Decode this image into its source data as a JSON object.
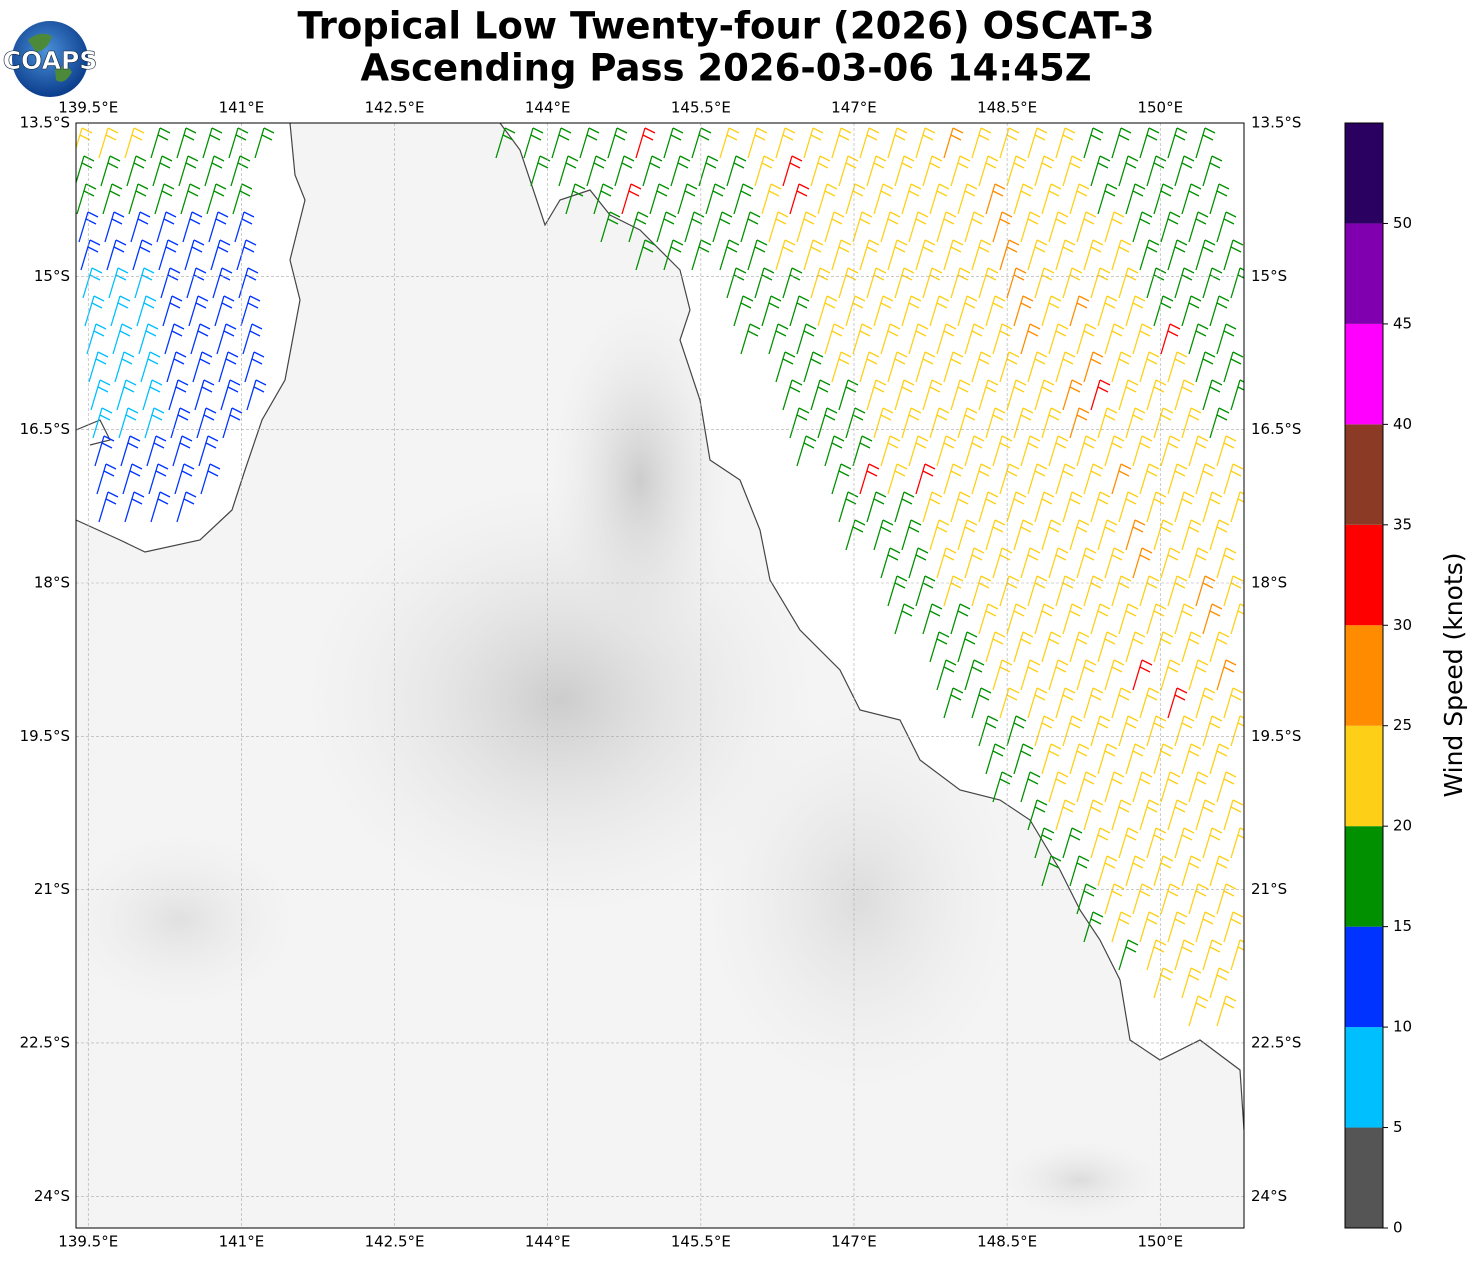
{
  "logo": "COAPS",
  "title": [
    "Tropical Low Twenty-four (2026) OSCAT-3",
    "Ascending Pass 2026-03-06 14:45Z"
  ],
  "map": {
    "xlim": [
      139.38,
      150.82
    ],
    "ylim": [
      -24.31,
      -13.5
    ],
    "xticks": [
      {
        "value": 139.5,
        "label": "139.5°E"
      },
      {
        "value": 141,
        "label": "141°E"
      },
      {
        "value": 142.5,
        "label": "142.5°E"
      },
      {
        "value": 144,
        "label": "144°E"
      },
      {
        "value": 145.5,
        "label": "145.5°E"
      },
      {
        "value": 147,
        "label": "147°E"
      },
      {
        "value": 148.5,
        "label": "148.5°E"
      },
      {
        "value": 150,
        "label": "150°E"
      }
    ],
    "yticks": [
      {
        "value": -13.5,
        "label": "13.5°S"
      },
      {
        "value": -15,
        "label": "15°S"
      },
      {
        "value": -16.5,
        "label": "16.5°S"
      },
      {
        "value": -18,
        "label": "18°S"
      },
      {
        "value": -19.5,
        "label": "19.5°S"
      },
      {
        "value": -21,
        "label": "21°S"
      },
      {
        "value": -22.5,
        "label": "22.5°S"
      },
      {
        "value": -24,
        "label": "24°S"
      }
    ],
    "grid": true
  },
  "colorbar": {
    "label": "Wind Speed (knots)",
    "lim": [
      0,
      55
    ],
    "ticks": [
      0,
      5,
      10,
      15,
      20,
      25,
      30,
      35,
      40,
      45,
      50
    ],
    "bounds": [
      0,
      5,
      10,
      15,
      20,
      25,
      30,
      35,
      40,
      45,
      50,
      55
    ],
    "colors": [
      "#555555",
      "#00bfff",
      "#0033ff",
      "#009000",
      "#fdd017",
      "#ff8c00",
      "#ff0000",
      "#8b3a26",
      "#ff00ff",
      "#8000b0",
      "#2a0060"
    ]
  }
}
